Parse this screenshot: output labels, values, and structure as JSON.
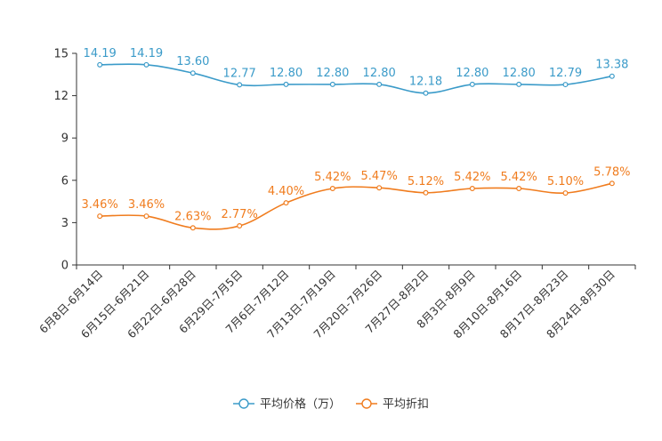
{
  "colors": {
    "price": "#3b9bc9",
    "discount": "#f07c1e",
    "axis": "#333333",
    "grid": "#999999"
  },
  "chart_data": {
    "type": "line",
    "title": "",
    "xlabel": "",
    "ylabel": "",
    "ylim": [
      0,
      15
    ],
    "yticks": [
      "0",
      "3",
      "6",
      "9",
      "12",
      "15"
    ],
    "ytick_values": [
      0,
      3,
      6,
      9,
      12,
      15
    ],
    "grid": false,
    "legend_position": "bottom-center",
    "categories": [
      "6月8日-6月14日",
      "6月15日-6月21日",
      "6月22日-6月28日",
      "6月29日-7月5日",
      "7月6日-7月12日",
      "7月13日-7月19日",
      "7月20日-7月26日",
      "7月27日-8月2日",
      "8月3日-8月9日",
      "8月10日-8月16日",
      "8月17日-8月23日",
      "8月24日-8月30日"
    ],
    "series": [
      {
        "name": "平均价格（万）",
        "color": "#3b9bc9",
        "values": [
          14.19,
          14.19,
          13.6,
          12.77,
          12.8,
          12.8,
          12.8,
          12.18,
          12.8,
          12.8,
          12.79,
          13.38
        ],
        "labels": [
          "14.19",
          "14.19",
          "13.60",
          "12.77",
          "12.80",
          "12.80",
          "12.80",
          "12.18",
          "12.80",
          "12.80",
          "12.79",
          "13.38"
        ]
      },
      {
        "name": "平均折扣",
        "color": "#f07c1e",
        "values": [
          3.46,
          3.46,
          2.63,
          2.77,
          4.4,
          5.42,
          5.47,
          5.12,
          5.42,
          5.42,
          5.1,
          5.78
        ],
        "labels": [
          "3.46%",
          "3.46%",
          "2.63%",
          "2.77%",
          "4.40%",
          "5.42%",
          "5.47%",
          "5.12%",
          "5.42%",
          "5.42%",
          "5.10%",
          "5.78%"
        ]
      }
    ]
  }
}
